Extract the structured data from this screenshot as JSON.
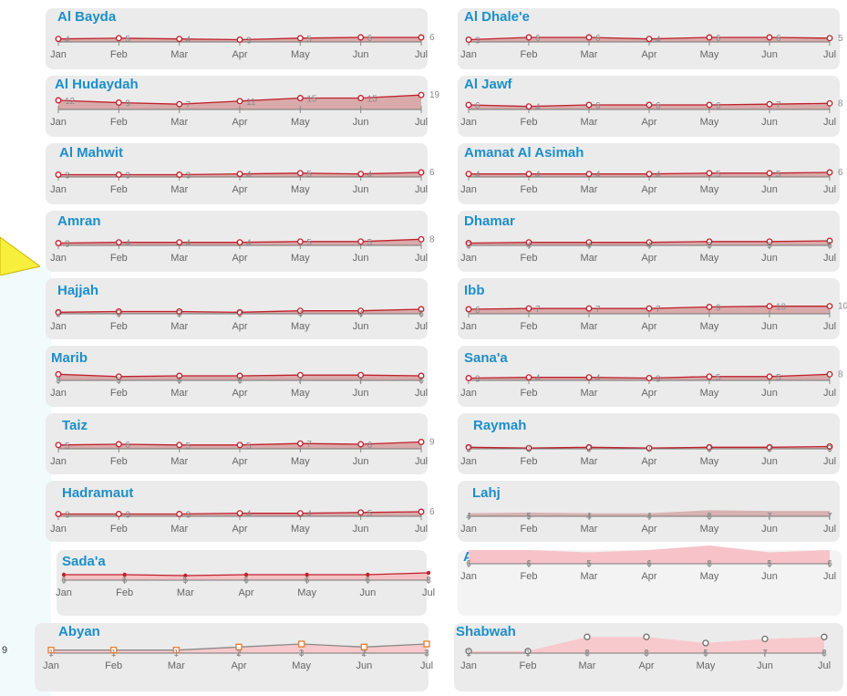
{
  "side_label": "9",
  "chart_data": [
    {
      "type": "area",
      "title": "Al Bayda",
      "categories": [
        "Jan",
        "Feb",
        "Mar",
        "Apr",
        "May",
        "Jun",
        "Jul"
      ],
      "values": [
        4,
        5,
        4,
        3,
        5,
        6,
        6
      ],
      "ylim": [
        0,
        24
      ],
      "style": "red"
    },
    {
      "type": "area",
      "title": "Al Dhale'e",
      "categories": [
        "Jan",
        "Feb",
        "Mar",
        "Apr",
        "May",
        "Jun",
        "Jul"
      ],
      "values": [
        3,
        6,
        6,
        4,
        6,
        6,
        5
      ],
      "ylim": [
        0,
        24
      ],
      "style": "red"
    },
    {
      "type": "area",
      "title": "Al Hudaydah",
      "categories": [
        "Jan",
        "Feb",
        "Mar",
        "Apr",
        "May",
        "Jun",
        "Jul"
      ],
      "values": [
        12,
        9,
        7,
        11,
        15,
        15,
        19
      ],
      "ylim": [
        0,
        24
      ],
      "style": "red"
    },
    {
      "type": "area",
      "title": "Al Jawf",
      "categories": [
        "Jan",
        "Feb",
        "Mar",
        "Apr",
        "May",
        "Jun",
        "Jul"
      ],
      "values": [
        6,
        4,
        6,
        6,
        6,
        7,
        8
      ],
      "ylim": [
        0,
        24
      ],
      "style": "red"
    },
    {
      "type": "area",
      "title": "Al Mahwit",
      "categories": [
        "Jan",
        "Feb",
        "Mar",
        "Apr",
        "May",
        "Jun",
        "Jul"
      ],
      "values": [
        3,
        3,
        3,
        4,
        5,
        4,
        6
      ],
      "ylim": [
        0,
        24
      ],
      "style": "red"
    },
    {
      "type": "area",
      "title": "Amanat Al Asimah",
      "categories": [
        "Jan",
        "Feb",
        "Mar",
        "Apr",
        "May",
        "Jun",
        "Jul"
      ],
      "values": [
        4,
        4,
        4,
        4,
        5,
        5,
        6
      ],
      "ylim": [
        0,
        24
      ],
      "style": "red"
    },
    {
      "type": "area",
      "title": "Amran",
      "categories": [
        "Jan",
        "Feb",
        "Mar",
        "Apr",
        "May",
        "Jun",
        "Jul"
      ],
      "values": [
        3,
        4,
        4,
        4,
        5,
        5,
        8
      ],
      "ylim": [
        0,
        24
      ],
      "style": "red"
    },
    {
      "type": "area",
      "title": "Dhamar",
      "categories": [
        "Jan",
        "Feb",
        "Mar",
        "Apr",
        "May",
        "Jun",
        "Jul"
      ],
      "values": [
        3,
        4,
        4,
        4,
        5,
        5,
        6
      ],
      "ylim": [
        0,
        24
      ],
      "style": "red",
      "labels_ticks": true
    },
    {
      "type": "area",
      "title": "Hajjah",
      "categories": [
        "Jan",
        "Feb",
        "Mar",
        "Apr",
        "May",
        "Jun",
        "Jul"
      ],
      "values": [
        2,
        3,
        3,
        2,
        4,
        4,
        6
      ],
      "ylim": [
        0,
        24
      ],
      "style": "red",
      "labels_ticks": true
    },
    {
      "type": "area",
      "title": "Ibb",
      "categories": [
        "Jan",
        "Feb",
        "Mar",
        "Apr",
        "May",
        "Jun",
        "Jul"
      ],
      "values": [
        6,
        7,
        7,
        7,
        9,
        10,
        10
      ],
      "ylim": [
        0,
        24
      ],
      "style": "red"
    },
    {
      "type": "area",
      "title": "Marib",
      "categories": [
        "Jan",
        "Feb",
        "Mar",
        "Apr",
        "May",
        "Jun",
        "Jul"
      ],
      "values": [
        8,
        5,
        6,
        6,
        7,
        7,
        6
      ],
      "ylim": [
        0,
        24
      ],
      "style": "red",
      "labels_ticks": true
    },
    {
      "type": "area",
      "title": "Sana'a",
      "categories": [
        "Jan",
        "Feb",
        "Mar",
        "Apr",
        "May",
        "Jun",
        "Jul"
      ],
      "values": [
        3,
        4,
        4,
        3,
        5,
        5,
        8
      ],
      "ylim": [
        0,
        24
      ],
      "style": "red"
    },
    {
      "type": "area",
      "title": "Taiz",
      "categories": [
        "Jan",
        "Feb",
        "Mar",
        "Apr",
        "May",
        "Jun",
        "Jul"
      ],
      "values": [
        5,
        6,
        5,
        5,
        7,
        6,
        9
      ],
      "ylim": [
        0,
        24
      ],
      "style": "red"
    },
    {
      "type": "area",
      "title": "Raymah",
      "categories": [
        "Jan",
        "Feb",
        "Mar",
        "Apr",
        "May",
        "Jun",
        "Jul"
      ],
      "values": [
        2,
        1,
        2,
        1,
        2,
        2,
        3
      ],
      "ylim": [
        0,
        24
      ],
      "style": "red",
      "labels_ticks": true
    },
    {
      "type": "area",
      "title": "Hadramaut",
      "categories": [
        "Jan",
        "Feb",
        "Mar",
        "Apr",
        "May",
        "Jun",
        "Jul"
      ],
      "values": [
        3,
        3,
        3,
        4,
        4,
        5,
        6
      ],
      "ylim": [
        0,
        24
      ],
      "style": "red"
    },
    {
      "type": "area",
      "title": "Lahj",
      "categories": [
        "Jan",
        "Feb",
        "Mar",
        "Apr",
        "May",
        "Jun",
        "Jul"
      ],
      "values": [
        4,
        5,
        4,
        4,
        8,
        7,
        7
      ],
      "ylim": [
        0,
        24
      ],
      "style": "flat",
      "labels_ticks": true
    },
    {
      "type": "area",
      "title": "Sada'a",
      "categories": [
        "Jan",
        "Feb",
        "Mar",
        "Apr",
        "May",
        "Jun",
        "Jul"
      ],
      "values": [
        6,
        6,
        5,
        6,
        6,
        6,
        8
      ],
      "ylim": [
        0,
        20
      ],
      "style": "dot",
      "labels_ticks": true
    },
    {
      "type": "area",
      "title": "Aden",
      "categories": [
        "Jan",
        "Feb",
        "Mar",
        "Apr",
        "May",
        "Jun",
        "Jul"
      ],
      "values": [
        6,
        6,
        5,
        6,
        8,
        5,
        6
      ],
      "ylim": [
        0,
        8
      ],
      "style": "pinkflat",
      "labels_ticks": true
    },
    {
      "type": "area",
      "title": "Abyan",
      "categories": [
        "Jan",
        "Feb",
        "Mar",
        "Apr",
        "May",
        "Jun",
        "Jul"
      ],
      "values": [
        1,
        1,
        1,
        2,
        3,
        2,
        3
      ],
      "ylim": [
        0,
        6
      ],
      "style": "square",
      "labels_ticks": true
    },
    {
      "type": "area",
      "title": "Shabwah",
      "categories": [
        "Jan",
        "Feb",
        "Mar",
        "Apr",
        "May",
        "Jun",
        "Jul"
      ],
      "values": [
        1,
        1,
        8,
        8,
        5,
        7,
        8
      ],
      "ylim": [
        0,
        9
      ],
      "style": "ring",
      "labels_ticks": true
    }
  ]
}
